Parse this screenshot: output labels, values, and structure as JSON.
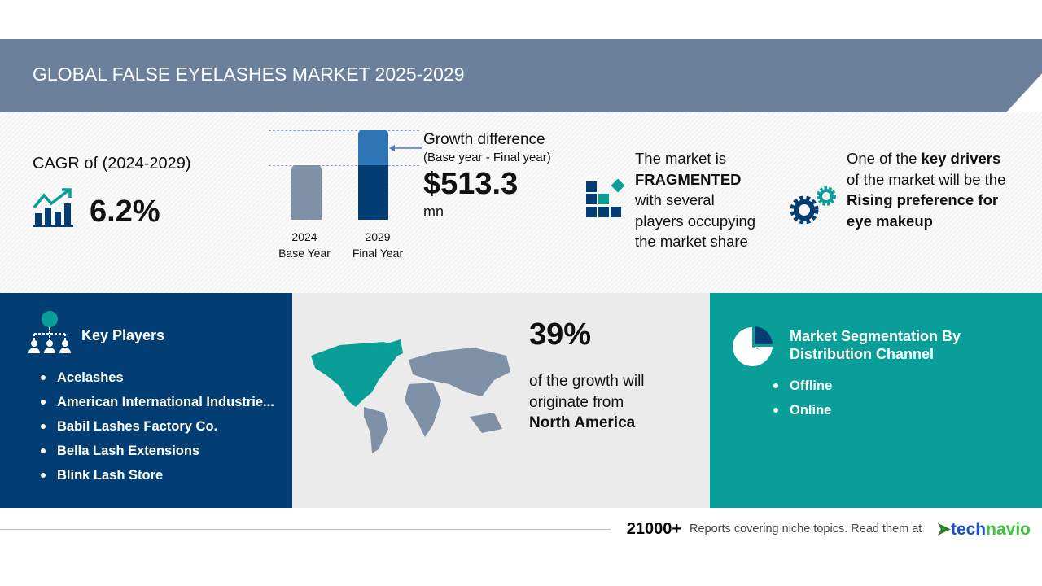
{
  "header": {
    "title": "GLOBAL FALSE EYELASHES MARKET 2025-2029"
  },
  "cagr": {
    "label": "CAGR of (2024-2029)",
    "value": "6.2%",
    "icon": "growth-chart-icon"
  },
  "growth": {
    "bars": [
      {
        "year": "2024",
        "label": "Base Year"
      },
      {
        "year": "2029",
        "label": "Final Year"
      }
    ],
    "title": "Growth difference",
    "subtitle": "(Base year - Final year)",
    "value": "$513.3",
    "unit": "mn"
  },
  "fragmented": {
    "line1": "The market is",
    "bold": "FRAGMENTED",
    "rest1": "with several",
    "rest2": "players occupying",
    "rest3": "the market share",
    "icon": "fragmented-blocks-icon"
  },
  "drivers": {
    "pre": "One of the ",
    "bold1": "key drivers",
    "line2": "of the market will be the",
    "bold2": "Rising preference for",
    "bold3": "eye makeup",
    "icon": "gears-icon"
  },
  "key_players": {
    "title": "Key Players",
    "items": [
      "Acelashes",
      "American International Industrie...",
      "Babil Lashes Factory Co.",
      "Bella Lash Extensions",
      "Blink Lash Store"
    ]
  },
  "region": {
    "percent": "39%",
    "line1": "of the growth will",
    "line2": "originate from",
    "region": "North America"
  },
  "segmentation": {
    "title1": "Market Segmentation By",
    "title2": "Distribution Channel",
    "items": [
      "Offline",
      "Online"
    ]
  },
  "footer": {
    "count": "21000+",
    "text": "Reports covering niche topics. Read them at",
    "brand1": "tech",
    "brand2": "navio"
  },
  "colors": {
    "navy": "#023e73",
    "teal": "#0a9e99",
    "header": "#6b819b",
    "gray_bar": "#7f91a6",
    "light_blue": "#2e75b6"
  }
}
